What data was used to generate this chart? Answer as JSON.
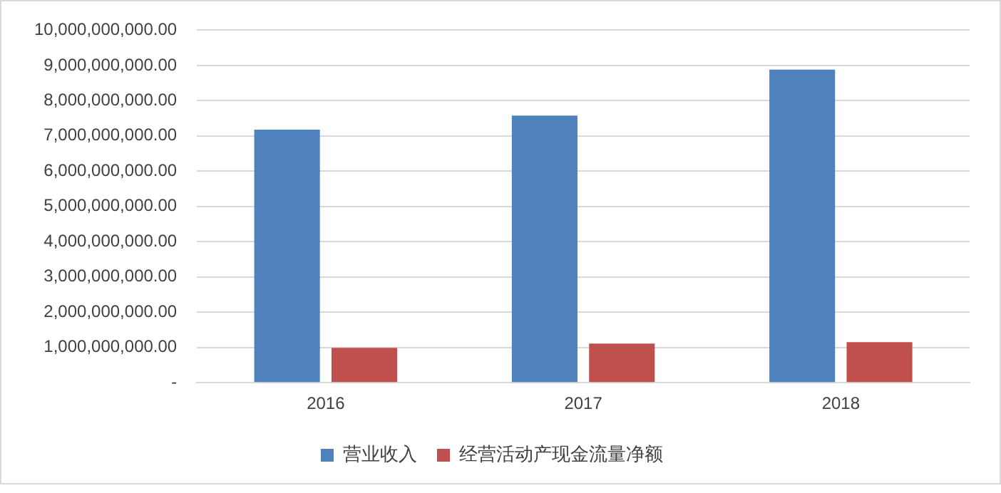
{
  "chart_data": {
    "type": "bar",
    "categories": [
      "2016",
      "2017",
      "2018"
    ],
    "series": [
      {
        "name": "营业收入",
        "color": "#4f81bd",
        "values": [
          7180000000,
          7580000000,
          8880000000
        ]
      },
      {
        "name": "经营活动产现金流量净额",
        "color": "#c0504d",
        "values": [
          990000000,
          1110000000,
          1150000000
        ]
      }
    ],
    "ylim": [
      0,
      10000000000
    ],
    "yticks": [
      {
        "value": 0,
        "label": "-"
      },
      {
        "value": 1000000000,
        "label": "1,000,000,000.00"
      },
      {
        "value": 2000000000,
        "label": "2,000,000,000.00"
      },
      {
        "value": 3000000000,
        "label": "3,000,000,000.00"
      },
      {
        "value": 4000000000,
        "label": "4,000,000,000.00"
      },
      {
        "value": 5000000000,
        "label": "5,000,000,000.00"
      },
      {
        "value": 6000000000,
        "label": "6,000,000,000.00"
      },
      {
        "value": 7000000000,
        "label": "7,000,000,000.00"
      },
      {
        "value": 8000000000,
        "label": "8,000,000,000.00"
      },
      {
        "value": 9000000000,
        "label": "9,000,000,000.00"
      },
      {
        "value": 10000000000,
        "label": "10,000,000,000.00"
      }
    ],
    "grid": "y",
    "legend": "bottom"
  }
}
